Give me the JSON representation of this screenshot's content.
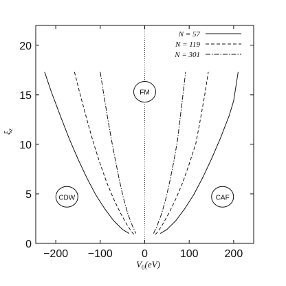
{
  "chart_data": {
    "type": "line",
    "xlabel": "V0(eV)",
    "ylabel": "ξz",
    "xlim": [
      -245,
      245
    ],
    "ylim": [
      0,
      22
    ],
    "x_ticks": [
      -200,
      -100,
      0,
      100,
      200
    ],
    "x_tick_labels": [
      "−200",
      "−100",
      "0",
      "100",
      "200"
    ],
    "y_ticks": [
      0,
      5,
      10,
      15,
      20
    ],
    "y_tick_labels": [
      "0",
      "5",
      "10",
      "15",
      "20"
    ],
    "grid": false,
    "legend_position": "top-right",
    "series": [
      {
        "name": "N = 57",
        "dash": "solid",
        "left": [
          [
            -225,
            17.3
          ],
          [
            -210,
            15.3
          ],
          [
            -190,
            12.9
          ],
          [
            -170,
            10.6
          ],
          [
            -150,
            8.5
          ],
          [
            -130,
            6.6
          ],
          [
            -110,
            4.9
          ],
          [
            -90,
            3.5
          ],
          [
            -70,
            2.3
          ],
          [
            -50,
            1.4
          ],
          [
            -35,
            1.0
          ]
        ],
        "right": [
          [
            35,
            1.0
          ],
          [
            50,
            1.4
          ],
          [
            70,
            2.3
          ],
          [
            90,
            3.5
          ],
          [
            110,
            4.9
          ],
          [
            130,
            6.6
          ],
          [
            150,
            8.5
          ],
          [
            170,
            10.6
          ],
          [
            190,
            12.9
          ],
          [
            200,
            14.4
          ],
          [
            210,
            17.3
          ]
        ]
      },
      {
        "name": "N = 119",
        "dash": "dashed",
        "left": [
          [
            -158,
            17.3
          ],
          [
            -145,
            15.0
          ],
          [
            -130,
            12.5
          ],
          [
            -115,
            10.1
          ],
          [
            -100,
            8.0
          ],
          [
            -85,
            6.1
          ],
          [
            -70,
            4.5
          ],
          [
            -55,
            3.1
          ],
          [
            -40,
            1.9
          ],
          [
            -30,
            1.2
          ],
          [
            -24,
            0.9
          ]
        ],
        "right": [
          [
            24,
            0.9
          ],
          [
            30,
            1.2
          ],
          [
            40,
            1.9
          ],
          [
            55,
            3.1
          ],
          [
            70,
            4.5
          ],
          [
            85,
            6.1
          ],
          [
            100,
            8.0
          ],
          [
            115,
            10.1
          ],
          [
            125,
            12.5
          ],
          [
            135,
            15.0
          ],
          [
            143,
            17.3
          ]
        ]
      },
      {
        "name": "N = 301",
        "dash": "dash-dot",
        "left": [
          [
            -100,
            17.3
          ],
          [
            -92,
            15.0
          ],
          [
            -84,
            12.8
          ],
          [
            -75,
            10.5
          ],
          [
            -66,
            8.4
          ],
          [
            -57,
            6.4
          ],
          [
            -48,
            4.6
          ],
          [
            -38,
            3.0
          ],
          [
            -28,
            1.8
          ],
          [
            -20,
            1.0
          ]
        ],
        "right": [
          [
            20,
            1.0
          ],
          [
            28,
            1.8
          ],
          [
            38,
            3.0
          ],
          [
            48,
            4.6
          ],
          [
            57,
            6.4
          ],
          [
            66,
            8.4
          ],
          [
            74,
            10.5
          ],
          [
            80,
            12.8
          ],
          [
            86,
            15.0
          ],
          [
            92,
            17.3
          ]
        ]
      }
    ],
    "annotations": [
      {
        "label": "FM",
        "x": 0,
        "y": 15.3
      },
      {
        "label": "CDW",
        "x": -175,
        "y": 4.7
      },
      {
        "label": "CAF",
        "x": 175,
        "y": 4.7
      }
    ],
    "reference_line": {
      "x": 0,
      "style": "dotted"
    }
  }
}
